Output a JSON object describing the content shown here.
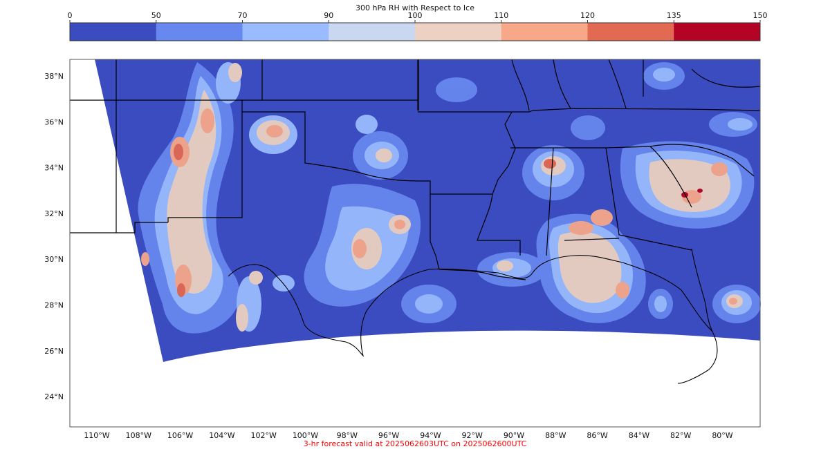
{
  "title": "300 hPa RH with Respect to Ice",
  "colorbar": {
    "ticks": [
      "0",
      "50",
      "70",
      "90",
      "100",
      "110",
      "120",
      "135",
      "150"
    ],
    "colors": [
      "#3b4cc0",
      "#6788ee",
      "#9abbff",
      "#c9d7f0",
      "#edd1c2",
      "#f7a889",
      "#e26952",
      "#b40426"
    ]
  },
  "lat_labels": [
    "38°N",
    "36°N",
    "34°N",
    "32°N",
    "30°N",
    "28°N",
    "26°N",
    "24°N"
  ],
  "lon_labels": [
    "110°W",
    "108°W",
    "106°W",
    "104°W",
    "102°W",
    "100°W",
    "98°W",
    "96°W",
    "94°W",
    "92°W",
    "90°W",
    "88°W",
    "86°W",
    "84°W",
    "82°W",
    "80°W"
  ],
  "footer": {
    "text": "3-hr forecast valid at 2025062603UTC on 2025062600UTC",
    "color": "#ff0000"
  }
}
